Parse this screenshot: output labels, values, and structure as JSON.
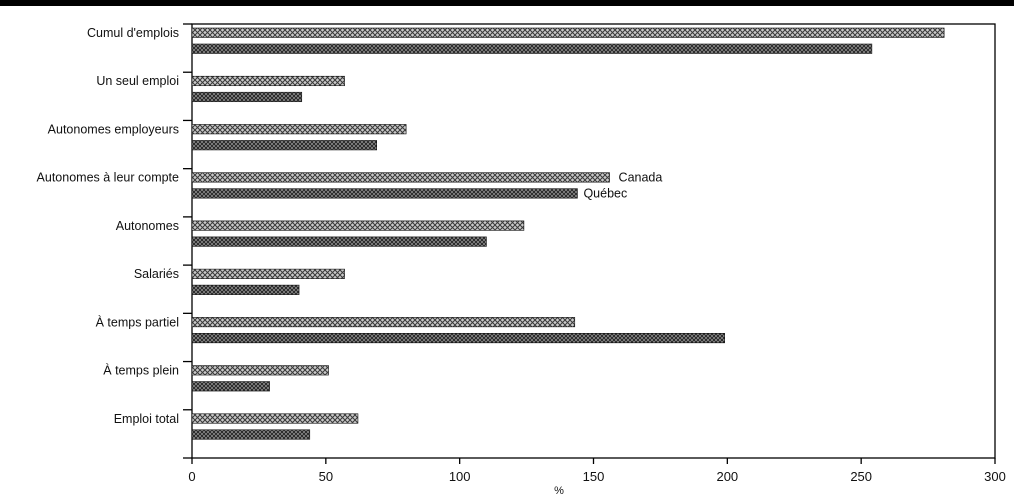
{
  "chart_data": {
    "type": "bar",
    "orientation": "horizontal",
    "title": "",
    "xlabel": "%",
    "ylabel": "",
    "categories": [
      "Cumul d'emplois",
      "Un seul emploi",
      "Autonomes employeurs",
      "Autonomes à leur compte",
      "Autonomes",
      "Salariés",
      "À temps partiel",
      "À temps plein",
      "Emploi total"
    ],
    "series": [
      {
        "name": "Canada",
        "values": [
          281,
          57,
          80,
          156,
          124,
          57,
          143,
          51,
          62
        ],
        "pattern": "crosshatch-light"
      },
      {
        "name": "Québec",
        "values": [
          254,
          41,
          69,
          144,
          110,
          40,
          199,
          29,
          44
        ],
        "pattern": "crosshatch-dark"
      }
    ],
    "xlim": [
      0,
      300
    ],
    "xticks": [
      "0",
      "50",
      "100",
      "150",
      "200",
      "250",
      "300"
    ],
    "legend_placement": "inline labels beside the 'Autonomes à leur compte' bars",
    "grid": false
  }
}
